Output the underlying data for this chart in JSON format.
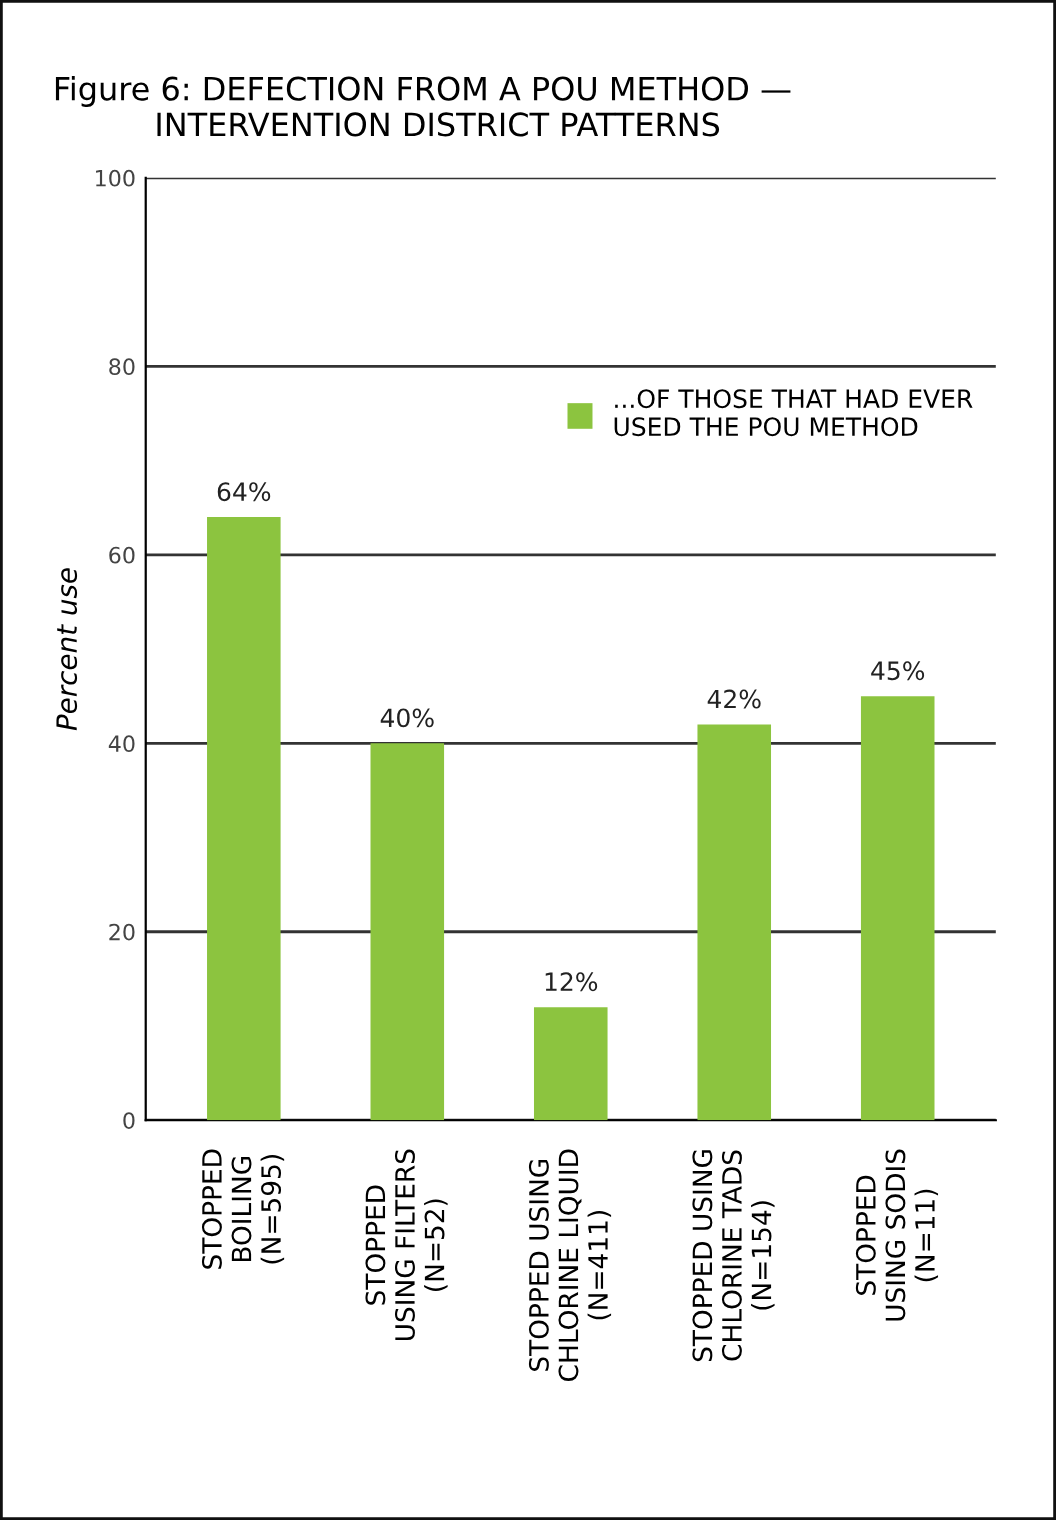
{
  "chart_data": {
    "type": "bar",
    "title": "Figure 6: DEFECTION FROM A POU METHOD —\n          INTERVENTION DISTRICT PATTERNS",
    "ylabel": "Percent use",
    "categories": [
      "STOPPED\nBOILING\n(N=595)",
      "STOPPED\nUSING FILTERS\n(N=52)",
      "STOPPED USING\nCHLORINE LIQUID\n(N=411)",
      "STOPPED USING\nCHLORINE TADS\n(N=154)",
      "STOPPED\nUSING SODIS\n(N=11)"
    ],
    "series": [
      {
        "name": "...OF THOSE THAT HAD EVER\nUSED THE POU METHOD",
        "color": "#8cc43f",
        "values": [
          64,
          40,
          12,
          42,
          45
        ],
        "value_labels": [
          "64%",
          "40%",
          "12%",
          "42%",
          "45%"
        ]
      }
    ],
    "ylim": [
      0,
      100
    ],
    "yticks": [
      0,
      20,
      40,
      60,
      80,
      100
    ],
    "grid": "y",
    "legend": "top right"
  }
}
